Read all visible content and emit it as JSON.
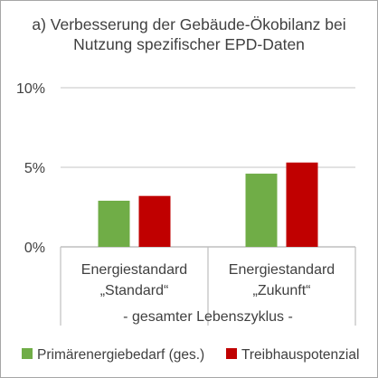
{
  "chart_data": {
    "type": "bar",
    "title_lines": [
      "a) Verbesserung der Gebäude-Ökobilanz bei",
      "Nutzung spezifischer EPD-Daten"
    ],
    "categories": [
      [
        "Energiestandard",
        "„Standard“"
      ],
      [
        "Energiestandard",
        "„Zukunft“"
      ]
    ],
    "group_label": "- gesamter Lebenszyklus -",
    "series": [
      {
        "name": "Primärenergiebedarf (ges.)",
        "values": [
          2.9,
          4.6
        ],
        "color": "#70ad47"
      },
      {
        "name": "Treibhauspotenzial",
        "values": [
          3.2,
          5.3
        ],
        "color": "#c00000"
      }
    ],
    "y_ticks": [
      "0%",
      "5%",
      "10%"
    ],
    "ylim": [
      0,
      10
    ],
    "grid": true,
    "legend_position": "bottom"
  }
}
